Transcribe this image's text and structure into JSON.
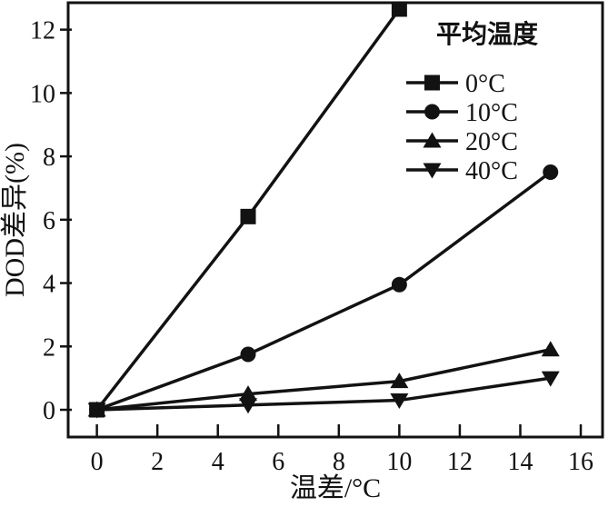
{
  "figure": {
    "background_color": "#ffffff",
    "ink_color": "#121212"
  },
  "chart_data": {
    "type": "line",
    "title": "",
    "xlabel": "温差/°C",
    "ylabel": "DOD差异(%)",
    "xlim": [
      -0.95,
      16.72
    ],
    "ylim": [
      -0.86,
      12.85
    ],
    "xticks": [
      0,
      2,
      4,
      6,
      8,
      10,
      12,
      14,
      16
    ],
    "yticks": [
      0,
      2,
      4,
      6,
      8,
      10,
      12
    ],
    "grid": false,
    "legend": {
      "title": "平均温度",
      "position": "top-right",
      "border": false
    },
    "series": [
      {
        "name": "0°C",
        "marker": "square",
        "color": "#121212",
        "points": [
          [
            0,
            0
          ],
          [
            5,
            6.1
          ],
          [
            10,
            12.65
          ]
        ]
      },
      {
        "name": "10°C",
        "marker": "circle",
        "color": "#121212",
        "points": [
          [
            0,
            0
          ],
          [
            5,
            1.75
          ],
          [
            10,
            3.95
          ],
          [
            15,
            7.5
          ]
        ]
      },
      {
        "name": "20°C",
        "marker": "triangle-up",
        "color": "#121212",
        "points": [
          [
            0,
            0
          ],
          [
            5,
            0.5
          ],
          [
            10,
            0.9
          ],
          [
            15,
            1.9
          ]
        ]
      },
      {
        "name": "40°C",
        "marker": "triangle-down",
        "color": "#121212",
        "points": [
          [
            0,
            0
          ],
          [
            5,
            0.15
          ],
          [
            10,
            0.3
          ],
          [
            15,
            1.0
          ]
        ]
      }
    ]
  }
}
